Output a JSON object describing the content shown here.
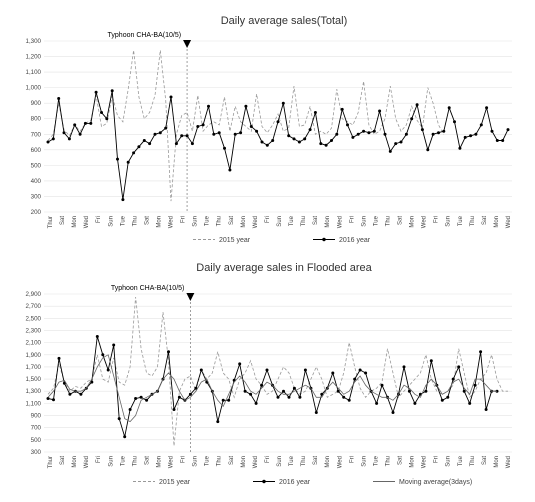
{
  "chart_data": [
    {
      "type": "line",
      "title": "Daily average sales(Total)",
      "xlabel": "",
      "ylabel": "",
      "ylim": [
        200,
        1300
      ],
      "yticks": [
        "200",
        "300",
        "400",
        "500",
        "600",
        "700",
        "800",
        "900",
        "1,000",
        "1,100",
        "1,200",
        "1,300"
      ],
      "annotation": "Typhoon CHA-BA(10/5)",
      "annotation_index": 26,
      "x_tick_labels": [
        "Thur",
        "Sat",
        "Mon",
        "Wed",
        "Fri",
        "Sun",
        "Tue",
        "Thu",
        "Sat",
        "Mon",
        "Wed",
        "Fri",
        "Sun",
        "Tue",
        "Thu",
        "Sat",
        "Mon",
        "Wed",
        "Fri",
        "Sun",
        "Tue",
        "Thu",
        "Sat",
        "Mon",
        "Wed",
        "Fri",
        "Sun",
        "Tue",
        "Thu",
        "Sat",
        "Mon",
        "Wed",
        "Fri",
        "Sun",
        "Tue",
        "Thu",
        "Sat",
        "Mon",
        "Wed"
      ],
      "legend_position": "bottom",
      "grid": true,
      "series": [
        {
          "name": "2015 year",
          "style": "dashed",
          "color": "#999999",
          "values": [
            660,
            700,
            900,
            730,
            690,
            760,
            720,
            770,
            790,
            950,
            750,
            770,
            950,
            820,
            780,
            990,
            1240,
            940,
            800,
            840,
            950,
            1240,
            920,
            270,
            700,
            820,
            840,
            720,
            950,
            720,
            760,
            780,
            760,
            940,
            720,
            880,
            780,
            750,
            720,
            960,
            750,
            710,
            760,
            830,
            720,
            740,
            1010,
            750,
            760,
            880,
            700,
            720,
            700,
            740,
            990,
            800,
            780,
            760,
            840,
            1040,
            760,
            700,
            720,
            800,
            1010,
            800,
            720,
            760,
            880,
            790,
            740,
            1000,
            900,
            760,
            700
          ]
        },
        {
          "name": "2016 year",
          "style": "solid-marker",
          "color": "#000000",
          "values": [
            650,
            670,
            930,
            710,
            670,
            760,
            700,
            770,
            770,
            970,
            840,
            800,
            980,
            540,
            280,
            520,
            580,
            620,
            660,
            640,
            700,
            710,
            740,
            940,
            640,
            690,
            690,
            640,
            750,
            760,
            880,
            700,
            710,
            610,
            470,
            700,
            710,
            880,
            750,
            720,
            650,
            630,
            660,
            780,
            900,
            690,
            670,
            650,
            670,
            730,
            840,
            640,
            630,
            660,
            700,
            860,
            760,
            680,
            700,
            720,
            710,
            720,
            850,
            700,
            590,
            640,
            650,
            700,
            800,
            890,
            730,
            600,
            700,
            710,
            720,
            870,
            780,
            610,
            680,
            690,
            700,
            760,
            870,
            720,
            660,
            660,
            730
          ]
        }
      ]
    },
    {
      "type": "line",
      "title": "Daily average sales in Flooded area",
      "xlabel": "",
      "ylabel": "",
      "ylim": [
        300,
        2900
      ],
      "yticks": [
        "300",
        "500",
        "700",
        "900",
        "1,100",
        "1,300",
        "1,500",
        "1,700",
        "1,900",
        "2,100",
        "2,300",
        "2,500",
        "2,700",
        "2,900"
      ],
      "annotation": "Typhoon CHA-BA(10/5)",
      "annotation_index": 26,
      "x_tick_labels": [
        "Thur",
        "Sat",
        "Mon",
        "Wed",
        "Fri",
        "Sun",
        "Tue",
        "Thu",
        "Sat",
        "Mon",
        "Wed",
        "Fri",
        "Sun",
        "Tue",
        "Thu",
        "Sat",
        "Mon",
        "Wed",
        "Fri",
        "Sun",
        "Tue",
        "Thu",
        "Sat",
        "Mon",
        "Wed",
        "Fri",
        "Sun",
        "Tue",
        "Thu",
        "Sat",
        "Mon",
        "Wed",
        "Fri",
        "Sun",
        "Tue",
        "Thu",
        "Sat",
        "Mon",
        "Wed"
      ],
      "legend_position": "bottom",
      "grid": true,
      "series": [
        {
          "name": "2015 year",
          "style": "dashed",
          "color": "#999999",
          "values": [
            1250,
            1350,
            1750,
            1450,
            1300,
            1380,
            1350,
            1450,
            1500,
            1900,
            1500,
            1450,
            1850,
            1450,
            1400,
            1700,
            2850,
            2000,
            1600,
            1550,
            1700,
            2600,
            1800,
            400,
            1300,
            1500,
            1550,
            1300,
            1650,
            1500,
            1600,
            1950,
            1600,
            1500,
            1200,
            1500,
            1600,
            1800,
            1500,
            1400,
            1250,
            1300,
            1500,
            1700,
            1600,
            1350,
            1250,
            1300,
            1500,
            1700,
            1500,
            1200,
            1250,
            1300,
            1600,
            2100,
            1700,
            1350,
            1200,
            1300,
            1350,
            1450,
            2000,
            1600,
            1200,
            1300,
            1400,
            1500,
            1600,
            1900,
            1500,
            1300,
            1250,
            1300,
            1400,
            2000,
            1600,
            1200,
            1300,
            1500,
            1600,
            1900,
            1500,
            1300,
            1300
          ]
        },
        {
          "name": "2016 year",
          "style": "solid-marker",
          "color": "#000000",
          "values": [
            1180,
            1160,
            1840,
            1430,
            1250,
            1300,
            1250,
            1350,
            1450,
            2200,
            1900,
            1650,
            2060,
            850,
            550,
            1000,
            1180,
            1200,
            1150,
            1250,
            1300,
            1500,
            1950,
            1000,
            1200,
            1150,
            1250,
            1350,
            1650,
            1450,
            1300,
            800,
            1150,
            1150,
            1480,
            1750,
            1300,
            1250,
            1100,
            1400,
            1650,
            1400,
            1200,
            1300,
            1200,
            1350,
            1200,
            1650,
            1350,
            950,
            1250,
            1350,
            1600,
            1300,
            1200,
            1150,
            1500,
            1650,
            1600,
            1300,
            1100,
            1400,
            1200,
            950,
            1250,
            1700,
            1300,
            1100,
            1250,
            1300,
            1800,
            1400,
            1150,
            1200,
            1500,
            1700,
            1300,
            1100,
            1400,
            1950,
            1000,
            1300,
            1300
          ]
        },
        {
          "name": "Moving average(3days)",
          "style": "solid",
          "color": "#666666",
          "values": [
            1200,
            1300,
            1450,
            1480,
            1330,
            1300,
            1300,
            1350,
            1500,
            1700,
            1850,
            1900,
            1550,
            1200,
            850,
            800,
            900,
            1150,
            1200,
            1250,
            1300,
            1500,
            1600,
            1500,
            1300,
            1150,
            1200,
            1300,
            1450,
            1500,
            1300,
            1150,
            1050,
            1250,
            1450,
            1550,
            1450,
            1300,
            1250,
            1350,
            1450,
            1400,
            1300,
            1250,
            1250,
            1300,
            1350,
            1400,
            1350,
            1200,
            1200,
            1350,
            1450,
            1350,
            1250,
            1300,
            1450,
            1550,
            1400,
            1300,
            1250,
            1200,
            1200,
            1150,
            1250,
            1400,
            1350,
            1250,
            1200,
            1400,
            1500,
            1400,
            1250,
            1300,
            1450,
            1500,
            1350,
            1250,
            1500,
            1500,
            1400,
            1300,
            1300
          ]
        }
      ]
    }
  ]
}
